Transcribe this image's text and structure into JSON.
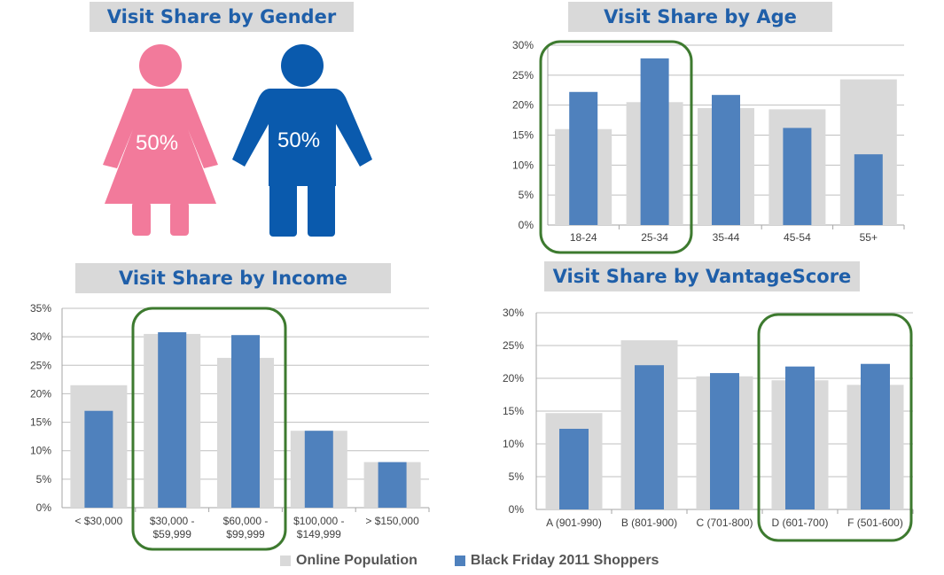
{
  "colors": {
    "online": "#d9d9d9",
    "shoppers": "#4f81bd",
    "title_text": "#1f5fa9",
    "highlight": "#3d7a2f",
    "female": "#f27a9b",
    "male": "#0a5aad"
  },
  "gender": {
    "title": "Visit Share by Gender",
    "female_pct": "50%",
    "male_pct": "50%"
  },
  "legend": {
    "online": "Online Population",
    "shoppers": "Black Friday 2011 Shoppers"
  },
  "chart_data": [
    {
      "type": "bar",
      "title": "Visit Share by Age",
      "categories": [
        [
          "18-24"
        ],
        [
          "25-34"
        ],
        [
          "35-44"
        ],
        [
          "45-54"
        ],
        [
          "55+"
        ]
      ],
      "series": [
        {
          "name": "Online Population",
          "values": [
            16,
            20.5,
            19.5,
            19.3,
            24.3
          ]
        },
        {
          "name": "Black Friday 2011 Shoppers",
          "values": [
            22.2,
            27.8,
            21.7,
            16.2,
            11.8
          ]
        }
      ],
      "ylim": [
        0,
        30
      ],
      "yticks": [
        "0%",
        "5%",
        "10%",
        "15%",
        "20%",
        "25%",
        "30%"
      ],
      "highlight": [
        0,
        1
      ]
    },
    {
      "type": "bar",
      "title": "Visit Share by Income",
      "categories": [
        [
          "< $30,000"
        ],
        [
          "$30,000 -",
          "$59,999"
        ],
        [
          "$60,000 -",
          "$99,999"
        ],
        [
          "$100,000 -",
          "$149,999"
        ],
        [
          "> $150,000"
        ]
      ],
      "series": [
        {
          "name": "Online Population",
          "values": [
            21.5,
            30.5,
            26.3,
            13.5,
            8
          ]
        },
        {
          "name": "Black Friday 2011 Shoppers",
          "values": [
            17,
            30.8,
            30.3,
            13.5,
            8
          ]
        }
      ],
      "ylim": [
        0,
        35
      ],
      "yticks": [
        "0%",
        "5%",
        "10%",
        "15%",
        "20%",
        "25%",
        "30%",
        "35%"
      ],
      "highlight": [
        1,
        2
      ]
    },
    {
      "type": "bar",
      "title": "Visit Share by VantageScore",
      "categories": [
        [
          "A (901-990)"
        ],
        [
          "B (801-900)"
        ],
        [
          "C (701-800)"
        ],
        [
          "D (601-700)"
        ],
        [
          "F (501-600)"
        ]
      ],
      "series": [
        {
          "name": "Online Population",
          "values": [
            14.7,
            25.8,
            20.3,
            19.7,
            19
          ]
        },
        {
          "name": "Black Friday 2011 Shoppers",
          "values": [
            12.3,
            22,
            20.8,
            21.8,
            22.2
          ]
        }
      ],
      "ylim": [
        0,
        30
      ],
      "yticks": [
        "0%",
        "5%",
        "10%",
        "15%",
        "20%",
        "25%",
        "30%"
      ],
      "highlight": [
        3,
        4
      ]
    }
  ]
}
